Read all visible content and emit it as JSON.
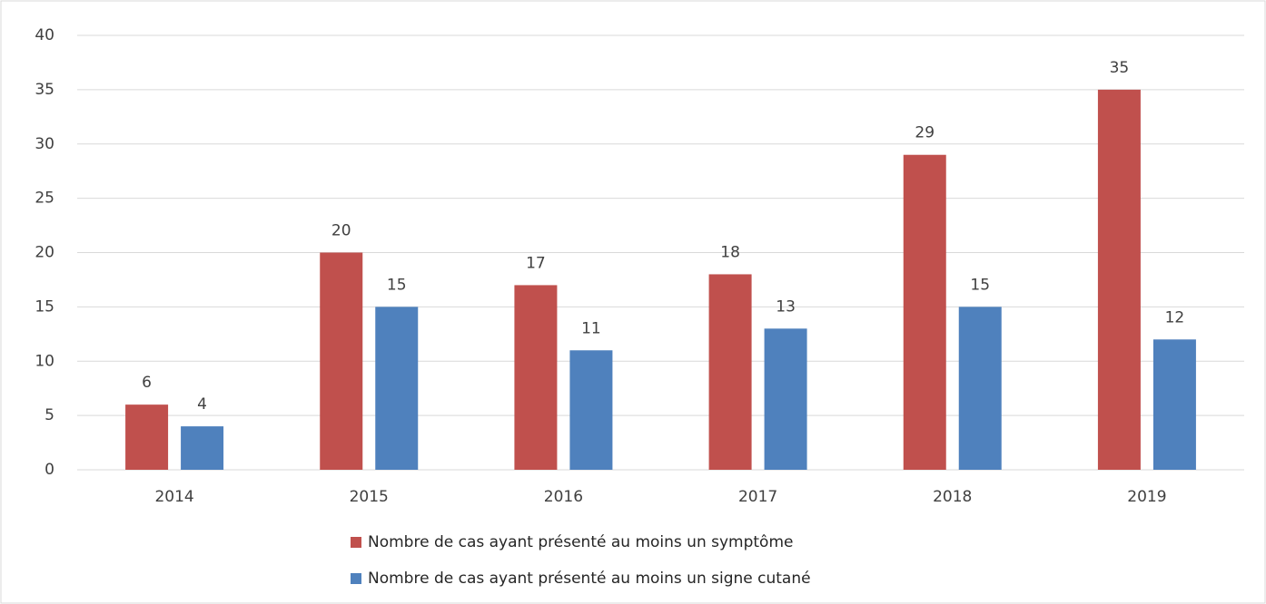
{
  "chart_data": {
    "type": "bar",
    "categories": [
      "2014",
      "2015",
      "2016",
      "2017",
      "2018",
      "2019"
    ],
    "series": [
      {
        "name": "Nombre de cas ayant présenté au moins un symptôme",
        "color": "#c0504d",
        "values": [
          6,
          20,
          17,
          18,
          29,
          35
        ]
      },
      {
        "name": "Nombre de cas ayant présenté au moins un signe cutané",
        "color": "#4f81bd",
        "values": [
          4,
          15,
          11,
          13,
          15,
          12
        ]
      }
    ],
    "ylim": [
      0,
      40
    ],
    "yticks": [
      0,
      5,
      10,
      15,
      20,
      25,
      30,
      35,
      40
    ],
    "grid": true,
    "legend": "bottom"
  }
}
